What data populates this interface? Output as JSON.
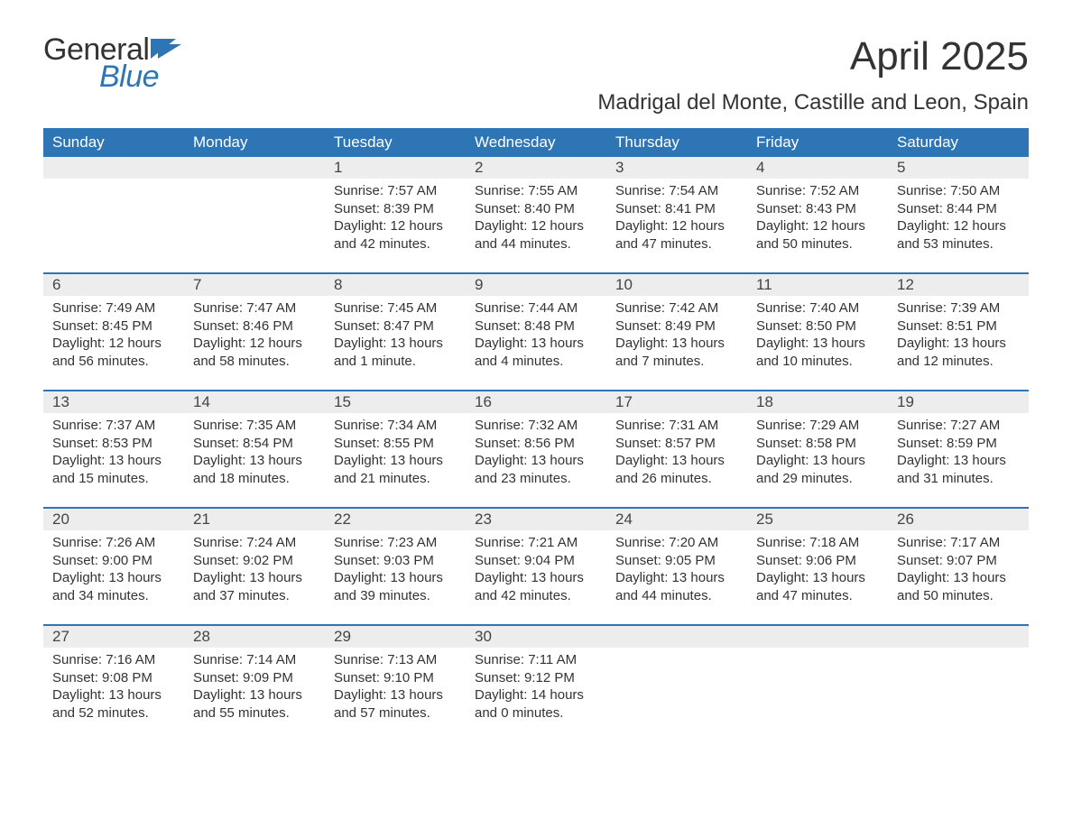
{
  "colors": {
    "brand_blue": "#2e75b6",
    "text": "#333333",
    "daynum_bg": "#ededed",
    "white": "#ffffff"
  },
  "typography": {
    "month_title_fontsize": 44,
    "location_fontsize": 24,
    "weekday_fontsize": 17,
    "daynum_fontsize": 17,
    "body_fontsize": 15,
    "logo_fontsize": 34
  },
  "logo": {
    "line1": "General",
    "line2": "Blue"
  },
  "title": "April 2025",
  "location": "Madrigal del Monte, Castille and Leon, Spain",
  "weekdays": [
    "Sunday",
    "Monday",
    "Tuesday",
    "Wednesday",
    "Thursday",
    "Friday",
    "Saturday"
  ],
  "weeks": [
    [
      {
        "n": "",
        "sunrise": "",
        "sunset": "",
        "daylight1": "",
        "daylight2": ""
      },
      {
        "n": "",
        "sunrise": "",
        "sunset": "",
        "daylight1": "",
        "daylight2": ""
      },
      {
        "n": "1",
        "sunrise": "Sunrise: 7:57 AM",
        "sunset": "Sunset: 8:39 PM",
        "daylight1": "Daylight: 12 hours",
        "daylight2": "and 42 minutes."
      },
      {
        "n": "2",
        "sunrise": "Sunrise: 7:55 AM",
        "sunset": "Sunset: 8:40 PM",
        "daylight1": "Daylight: 12 hours",
        "daylight2": "and 44 minutes."
      },
      {
        "n": "3",
        "sunrise": "Sunrise: 7:54 AM",
        "sunset": "Sunset: 8:41 PM",
        "daylight1": "Daylight: 12 hours",
        "daylight2": "and 47 minutes."
      },
      {
        "n": "4",
        "sunrise": "Sunrise: 7:52 AM",
        "sunset": "Sunset: 8:43 PM",
        "daylight1": "Daylight: 12 hours",
        "daylight2": "and 50 minutes."
      },
      {
        "n": "5",
        "sunrise": "Sunrise: 7:50 AM",
        "sunset": "Sunset: 8:44 PM",
        "daylight1": "Daylight: 12 hours",
        "daylight2": "and 53 minutes."
      }
    ],
    [
      {
        "n": "6",
        "sunrise": "Sunrise: 7:49 AM",
        "sunset": "Sunset: 8:45 PM",
        "daylight1": "Daylight: 12 hours",
        "daylight2": "and 56 minutes."
      },
      {
        "n": "7",
        "sunrise": "Sunrise: 7:47 AM",
        "sunset": "Sunset: 8:46 PM",
        "daylight1": "Daylight: 12 hours",
        "daylight2": "and 58 minutes."
      },
      {
        "n": "8",
        "sunrise": "Sunrise: 7:45 AM",
        "sunset": "Sunset: 8:47 PM",
        "daylight1": "Daylight: 13 hours",
        "daylight2": "and 1 minute."
      },
      {
        "n": "9",
        "sunrise": "Sunrise: 7:44 AM",
        "sunset": "Sunset: 8:48 PM",
        "daylight1": "Daylight: 13 hours",
        "daylight2": "and 4 minutes."
      },
      {
        "n": "10",
        "sunrise": "Sunrise: 7:42 AM",
        "sunset": "Sunset: 8:49 PM",
        "daylight1": "Daylight: 13 hours",
        "daylight2": "and 7 minutes."
      },
      {
        "n": "11",
        "sunrise": "Sunrise: 7:40 AM",
        "sunset": "Sunset: 8:50 PM",
        "daylight1": "Daylight: 13 hours",
        "daylight2": "and 10 minutes."
      },
      {
        "n": "12",
        "sunrise": "Sunrise: 7:39 AM",
        "sunset": "Sunset: 8:51 PM",
        "daylight1": "Daylight: 13 hours",
        "daylight2": "and 12 minutes."
      }
    ],
    [
      {
        "n": "13",
        "sunrise": "Sunrise: 7:37 AM",
        "sunset": "Sunset: 8:53 PM",
        "daylight1": "Daylight: 13 hours",
        "daylight2": "and 15 minutes."
      },
      {
        "n": "14",
        "sunrise": "Sunrise: 7:35 AM",
        "sunset": "Sunset: 8:54 PM",
        "daylight1": "Daylight: 13 hours",
        "daylight2": "and 18 minutes."
      },
      {
        "n": "15",
        "sunrise": "Sunrise: 7:34 AM",
        "sunset": "Sunset: 8:55 PM",
        "daylight1": "Daylight: 13 hours",
        "daylight2": "and 21 minutes."
      },
      {
        "n": "16",
        "sunrise": "Sunrise: 7:32 AM",
        "sunset": "Sunset: 8:56 PM",
        "daylight1": "Daylight: 13 hours",
        "daylight2": "and 23 minutes."
      },
      {
        "n": "17",
        "sunrise": "Sunrise: 7:31 AM",
        "sunset": "Sunset: 8:57 PM",
        "daylight1": "Daylight: 13 hours",
        "daylight2": "and 26 minutes."
      },
      {
        "n": "18",
        "sunrise": "Sunrise: 7:29 AM",
        "sunset": "Sunset: 8:58 PM",
        "daylight1": "Daylight: 13 hours",
        "daylight2": "and 29 minutes."
      },
      {
        "n": "19",
        "sunrise": "Sunrise: 7:27 AM",
        "sunset": "Sunset: 8:59 PM",
        "daylight1": "Daylight: 13 hours",
        "daylight2": "and 31 minutes."
      }
    ],
    [
      {
        "n": "20",
        "sunrise": "Sunrise: 7:26 AM",
        "sunset": "Sunset: 9:00 PM",
        "daylight1": "Daylight: 13 hours",
        "daylight2": "and 34 minutes."
      },
      {
        "n": "21",
        "sunrise": "Sunrise: 7:24 AM",
        "sunset": "Sunset: 9:02 PM",
        "daylight1": "Daylight: 13 hours",
        "daylight2": "and 37 minutes."
      },
      {
        "n": "22",
        "sunrise": "Sunrise: 7:23 AM",
        "sunset": "Sunset: 9:03 PM",
        "daylight1": "Daylight: 13 hours",
        "daylight2": "and 39 minutes."
      },
      {
        "n": "23",
        "sunrise": "Sunrise: 7:21 AM",
        "sunset": "Sunset: 9:04 PM",
        "daylight1": "Daylight: 13 hours",
        "daylight2": "and 42 minutes."
      },
      {
        "n": "24",
        "sunrise": "Sunrise: 7:20 AM",
        "sunset": "Sunset: 9:05 PM",
        "daylight1": "Daylight: 13 hours",
        "daylight2": "and 44 minutes."
      },
      {
        "n": "25",
        "sunrise": "Sunrise: 7:18 AM",
        "sunset": "Sunset: 9:06 PM",
        "daylight1": "Daylight: 13 hours",
        "daylight2": "and 47 minutes."
      },
      {
        "n": "26",
        "sunrise": "Sunrise: 7:17 AM",
        "sunset": "Sunset: 9:07 PM",
        "daylight1": "Daylight: 13 hours",
        "daylight2": "and 50 minutes."
      }
    ],
    [
      {
        "n": "27",
        "sunrise": "Sunrise: 7:16 AM",
        "sunset": "Sunset: 9:08 PM",
        "daylight1": "Daylight: 13 hours",
        "daylight2": "and 52 minutes."
      },
      {
        "n": "28",
        "sunrise": "Sunrise: 7:14 AM",
        "sunset": "Sunset: 9:09 PM",
        "daylight1": "Daylight: 13 hours",
        "daylight2": "and 55 minutes."
      },
      {
        "n": "29",
        "sunrise": "Sunrise: 7:13 AM",
        "sunset": "Sunset: 9:10 PM",
        "daylight1": "Daylight: 13 hours",
        "daylight2": "and 57 minutes."
      },
      {
        "n": "30",
        "sunrise": "Sunrise: 7:11 AM",
        "sunset": "Sunset: 9:12 PM",
        "daylight1": "Daylight: 14 hours",
        "daylight2": "and 0 minutes."
      },
      {
        "n": "",
        "sunrise": "",
        "sunset": "",
        "daylight1": "",
        "daylight2": ""
      },
      {
        "n": "",
        "sunrise": "",
        "sunset": "",
        "daylight1": "",
        "daylight2": ""
      },
      {
        "n": "",
        "sunrise": "",
        "sunset": "",
        "daylight1": "",
        "daylight2": ""
      }
    ]
  ]
}
